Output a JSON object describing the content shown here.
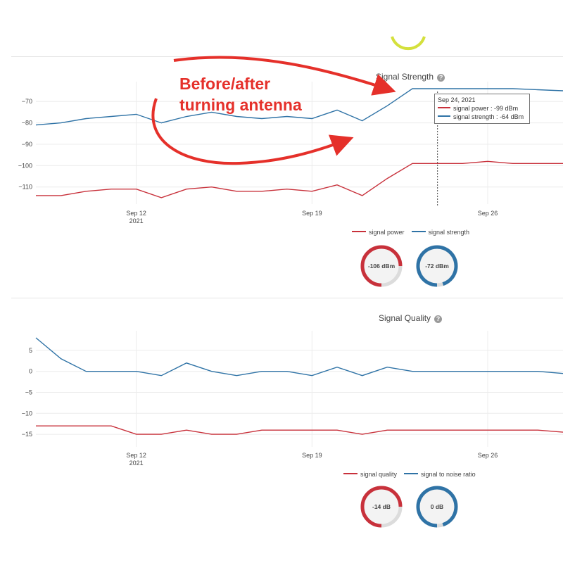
{
  "annotation": {
    "line1": "Before/after",
    "line2": "turning antenna"
  },
  "colors": {
    "red": "#c8313b",
    "blue": "#2f73a6",
    "annotation": "#e5302a",
    "top_gauge": "#d4e03c"
  },
  "chart_data": [
    {
      "type": "line",
      "title": "Signal Strength",
      "x_ticks": [
        {
          "date": "2021-09-12",
          "label": "Sep 12",
          "sublabel": "2021"
        },
        {
          "date": "2021-09-19",
          "label": "Sep 19",
          "sublabel": ""
        },
        {
          "date": "2021-09-26",
          "label": "Sep 26",
          "sublabel": ""
        }
      ],
      "xlim": [
        "2021-09-08",
        "2021-09-29"
      ],
      "y_ticks": [
        -70,
        -80,
        -90,
        -100,
        -110
      ],
      "ylim": [
        -118,
        -64
      ],
      "grid": true,
      "legend_position": "bottom",
      "series": [
        {
          "name": "signal power",
          "color": "#c8313b",
          "points": [
            [
              "2021-09-08",
              -114
            ],
            [
              "2021-09-09",
              -114
            ],
            [
              "2021-09-10",
              -112
            ],
            [
              "2021-09-11",
              -111
            ],
            [
              "2021-09-12",
              -111
            ],
            [
              "2021-09-13",
              -115
            ],
            [
              "2021-09-14",
              -111
            ],
            [
              "2021-09-15",
              -110
            ],
            [
              "2021-09-16",
              -112
            ],
            [
              "2021-09-17",
              -112
            ],
            [
              "2021-09-18",
              -111
            ],
            [
              "2021-09-19",
              -112
            ],
            [
              "2021-09-20",
              -109
            ],
            [
              "2021-09-21",
              -114
            ],
            [
              "2021-09-22",
              -106
            ],
            [
              "2021-09-23",
              -99
            ],
            [
              "2021-09-24",
              -99
            ],
            [
              "2021-09-25",
              -99
            ],
            [
              "2021-09-26",
              -98
            ],
            [
              "2021-09-27",
              -99
            ],
            [
              "2021-09-28",
              -99
            ],
            [
              "2021-09-29",
              -99
            ]
          ]
        },
        {
          "name": "signal strength",
          "color": "#2f73a6",
          "points": [
            [
              "2021-09-08",
              -81
            ],
            [
              "2021-09-09",
              -80
            ],
            [
              "2021-09-10",
              -78
            ],
            [
              "2021-09-11",
              -77
            ],
            [
              "2021-09-12",
              -76
            ],
            [
              "2021-09-13",
              -80
            ],
            [
              "2021-09-14",
              -77
            ],
            [
              "2021-09-15",
              -75
            ],
            [
              "2021-09-16",
              -77
            ],
            [
              "2021-09-17",
              -78
            ],
            [
              "2021-09-18",
              -77
            ],
            [
              "2021-09-19",
              -78
            ],
            [
              "2021-09-20",
              -74
            ],
            [
              "2021-09-21",
              -79
            ],
            [
              "2021-09-22",
              -72
            ],
            [
              "2021-09-23",
              -64
            ],
            [
              "2021-09-24",
              -64
            ],
            [
              "2021-09-25",
              -64
            ],
            [
              "2021-09-26",
              -64
            ],
            [
              "2021-09-27",
              -64
            ],
            [
              "2021-09-28",
              -64.5
            ],
            [
              "2021-09-29",
              -65
            ]
          ]
        }
      ],
      "hover": {
        "date_label": "Sep 24, 2021",
        "date": "2021-09-24",
        "rows": [
          {
            "name": "signal power",
            "value": "-99 dBm",
            "color": "#c8313b"
          },
          {
            "name": "signal strength",
            "value": "-64 dBm",
            "color": "#2f73a6"
          }
        ]
      },
      "gauges": [
        {
          "label": "-106 dBm",
          "fraction": 0.75,
          "color": "#c8313b"
        },
        {
          "label": "-72 dBm",
          "fraction": 0.95,
          "color": "#2f73a6"
        }
      ]
    },
    {
      "type": "line",
      "title": "Signal Quality",
      "x_ticks": [
        {
          "date": "2021-09-12",
          "label": "Sep 12",
          "sublabel": "2021"
        },
        {
          "date": "2021-09-19",
          "label": "Sep 19",
          "sublabel": ""
        },
        {
          "date": "2021-09-26",
          "label": "Sep 26",
          "sublabel": ""
        }
      ],
      "xlim": [
        "2021-09-08",
        "2021-09-29"
      ],
      "y_ticks": [
        5,
        0,
        -5,
        -10,
        -15
      ],
      "ylim": [
        -18,
        8
      ],
      "grid": true,
      "legend_position": "bottom",
      "series": [
        {
          "name": "signal quality",
          "color": "#c8313b",
          "points": [
            [
              "2021-09-08",
              -13
            ],
            [
              "2021-09-09",
              -13
            ],
            [
              "2021-09-10",
              -13
            ],
            [
              "2021-09-11",
              -13
            ],
            [
              "2021-09-12",
              -15
            ],
            [
              "2021-09-13",
              -15
            ],
            [
              "2021-09-14",
              -14
            ],
            [
              "2021-09-15",
              -15
            ],
            [
              "2021-09-16",
              -15
            ],
            [
              "2021-09-17",
              -14
            ],
            [
              "2021-09-18",
              -14
            ],
            [
              "2021-09-19",
              -14
            ],
            [
              "2021-09-20",
              -14
            ],
            [
              "2021-09-21",
              -15
            ],
            [
              "2021-09-22",
              -14
            ],
            [
              "2021-09-23",
              -14
            ],
            [
              "2021-09-24",
              -14
            ],
            [
              "2021-09-25",
              -14
            ],
            [
              "2021-09-26",
              -14
            ],
            [
              "2021-09-27",
              -14
            ],
            [
              "2021-09-28",
              -14
            ],
            [
              "2021-09-29",
              -14.5
            ]
          ]
        },
        {
          "name": "signal to noise ratio",
          "color": "#2f73a6",
          "points": [
            [
              "2021-09-08",
              8
            ],
            [
              "2021-09-09",
              3
            ],
            [
              "2021-09-10",
              0
            ],
            [
              "2021-09-11",
              0
            ],
            [
              "2021-09-12",
              0
            ],
            [
              "2021-09-13",
              -1
            ],
            [
              "2021-09-14",
              2
            ],
            [
              "2021-09-15",
              0
            ],
            [
              "2021-09-16",
              -1
            ],
            [
              "2021-09-17",
              0
            ],
            [
              "2021-09-18",
              0
            ],
            [
              "2021-09-19",
              -1
            ],
            [
              "2021-09-20",
              1
            ],
            [
              "2021-09-21",
              -1
            ],
            [
              "2021-09-22",
              1
            ],
            [
              "2021-09-23",
              0
            ],
            [
              "2021-09-24",
              0
            ],
            [
              "2021-09-25",
              0
            ],
            [
              "2021-09-26",
              0
            ],
            [
              "2021-09-27",
              0
            ],
            [
              "2021-09-28",
              0
            ],
            [
              "2021-09-29",
              -0.5
            ]
          ]
        }
      ],
      "gauges": [
        {
          "label": "-14 dB",
          "fraction": 0.75,
          "color": "#c8313b"
        },
        {
          "label": "0 dB",
          "fraction": 0.95,
          "color": "#2f73a6"
        }
      ]
    }
  ]
}
